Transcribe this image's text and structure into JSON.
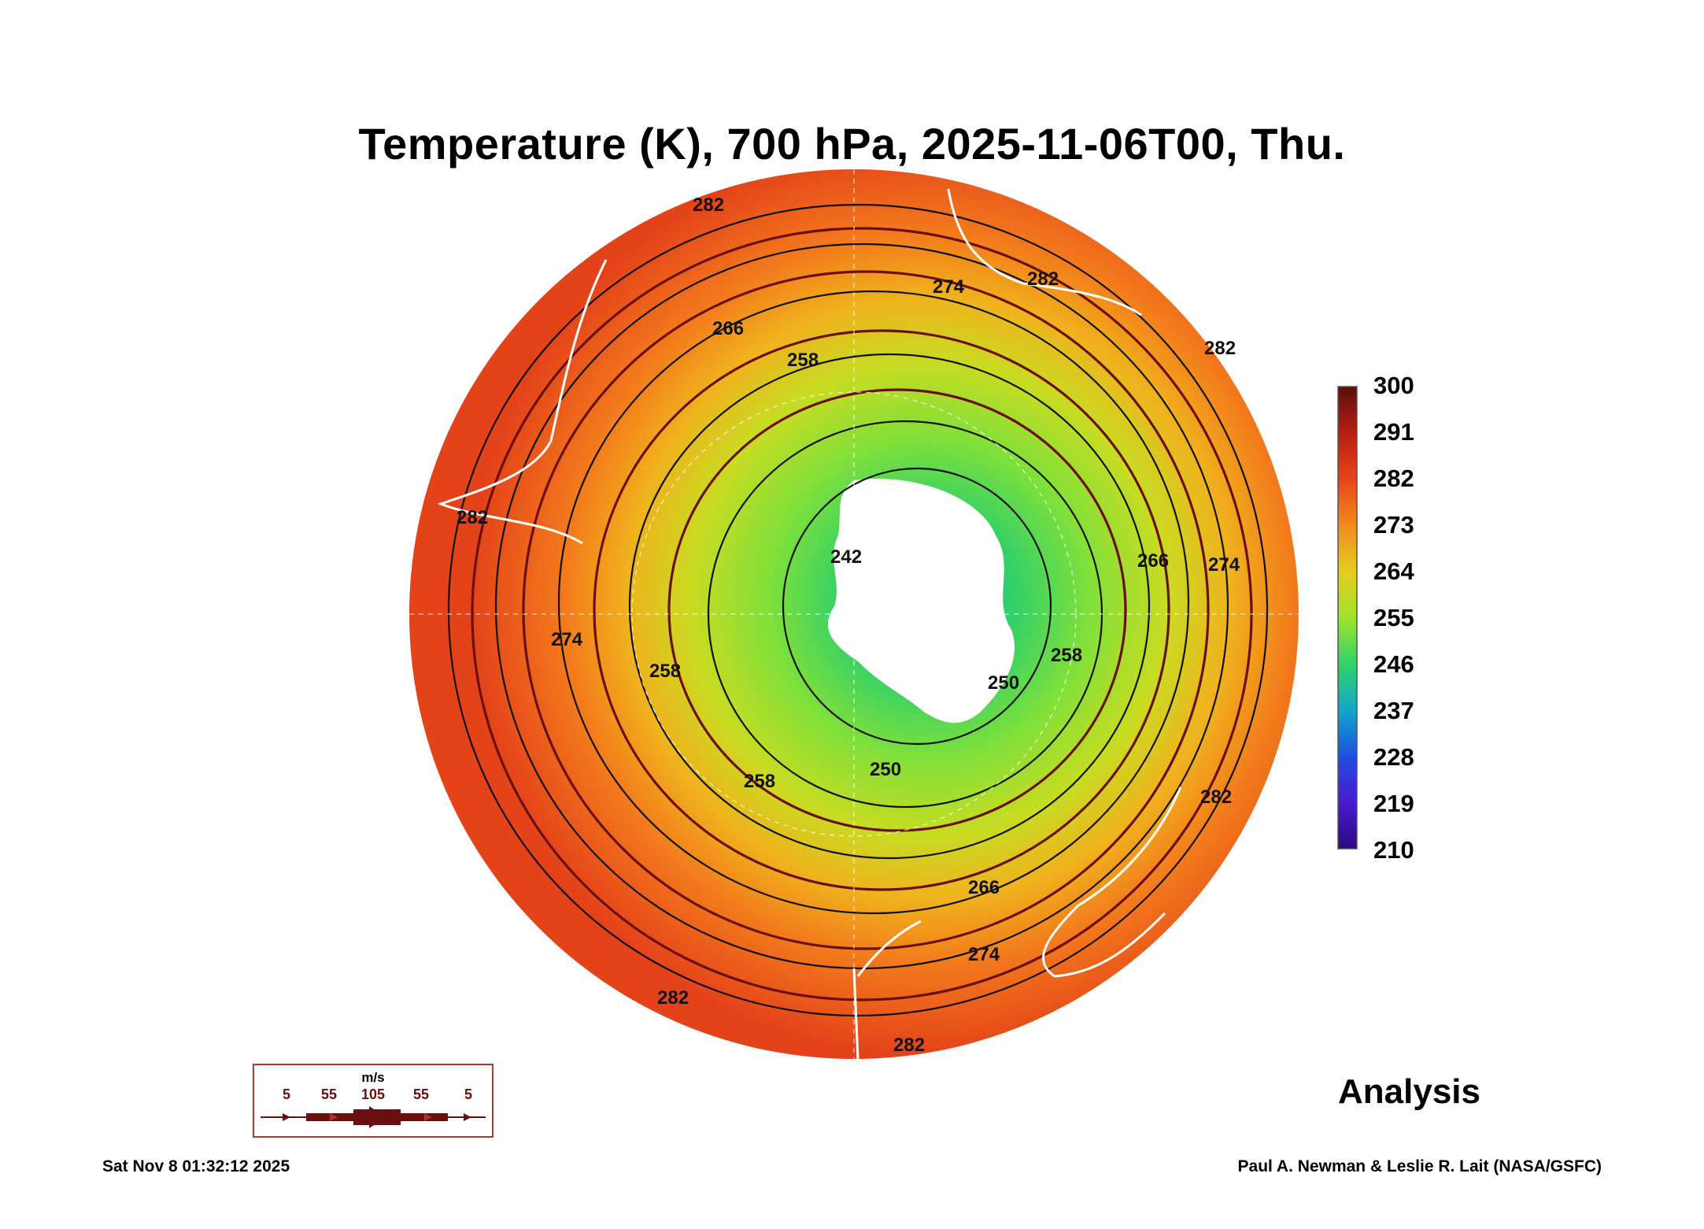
{
  "title": "Temperature (K), 700 hPa, 2025-11-06T00, Thu.",
  "colorbar": {
    "labels": [
      "300",
      "291",
      "282",
      "273",
      "264",
      "255",
      "246",
      "237",
      "228",
      "219",
      "210"
    ],
    "stops": [
      "#5a0e0e",
      "#b81e10",
      "#e8451a",
      "#f08b1d",
      "#e6cc1f",
      "#9ee42a",
      "#2fd46a",
      "#12a7c9",
      "#1f4fe0",
      "#4a1ad0",
      "#2a0a80"
    ]
  },
  "contour_labels": [
    "282",
    "274",
    "282",
    "266",
    "258",
    "282",
    "274",
    "282",
    "242",
    "258",
    "266",
    "250",
    "258",
    "258",
    "250",
    "266",
    "274",
    "282",
    "282",
    "282",
    "274"
  ],
  "legend": {
    "unit": "m/s",
    "speeds": [
      "5",
      "55",
      "105",
      "55",
      "5"
    ]
  },
  "analysis_label": "Analysis",
  "footer": {
    "timestamp": "Sat Nov  8 01:32:12 2025",
    "credit": "Paul A. Newman & Leslie R. Lait (NASA/GSFC)"
  }
}
